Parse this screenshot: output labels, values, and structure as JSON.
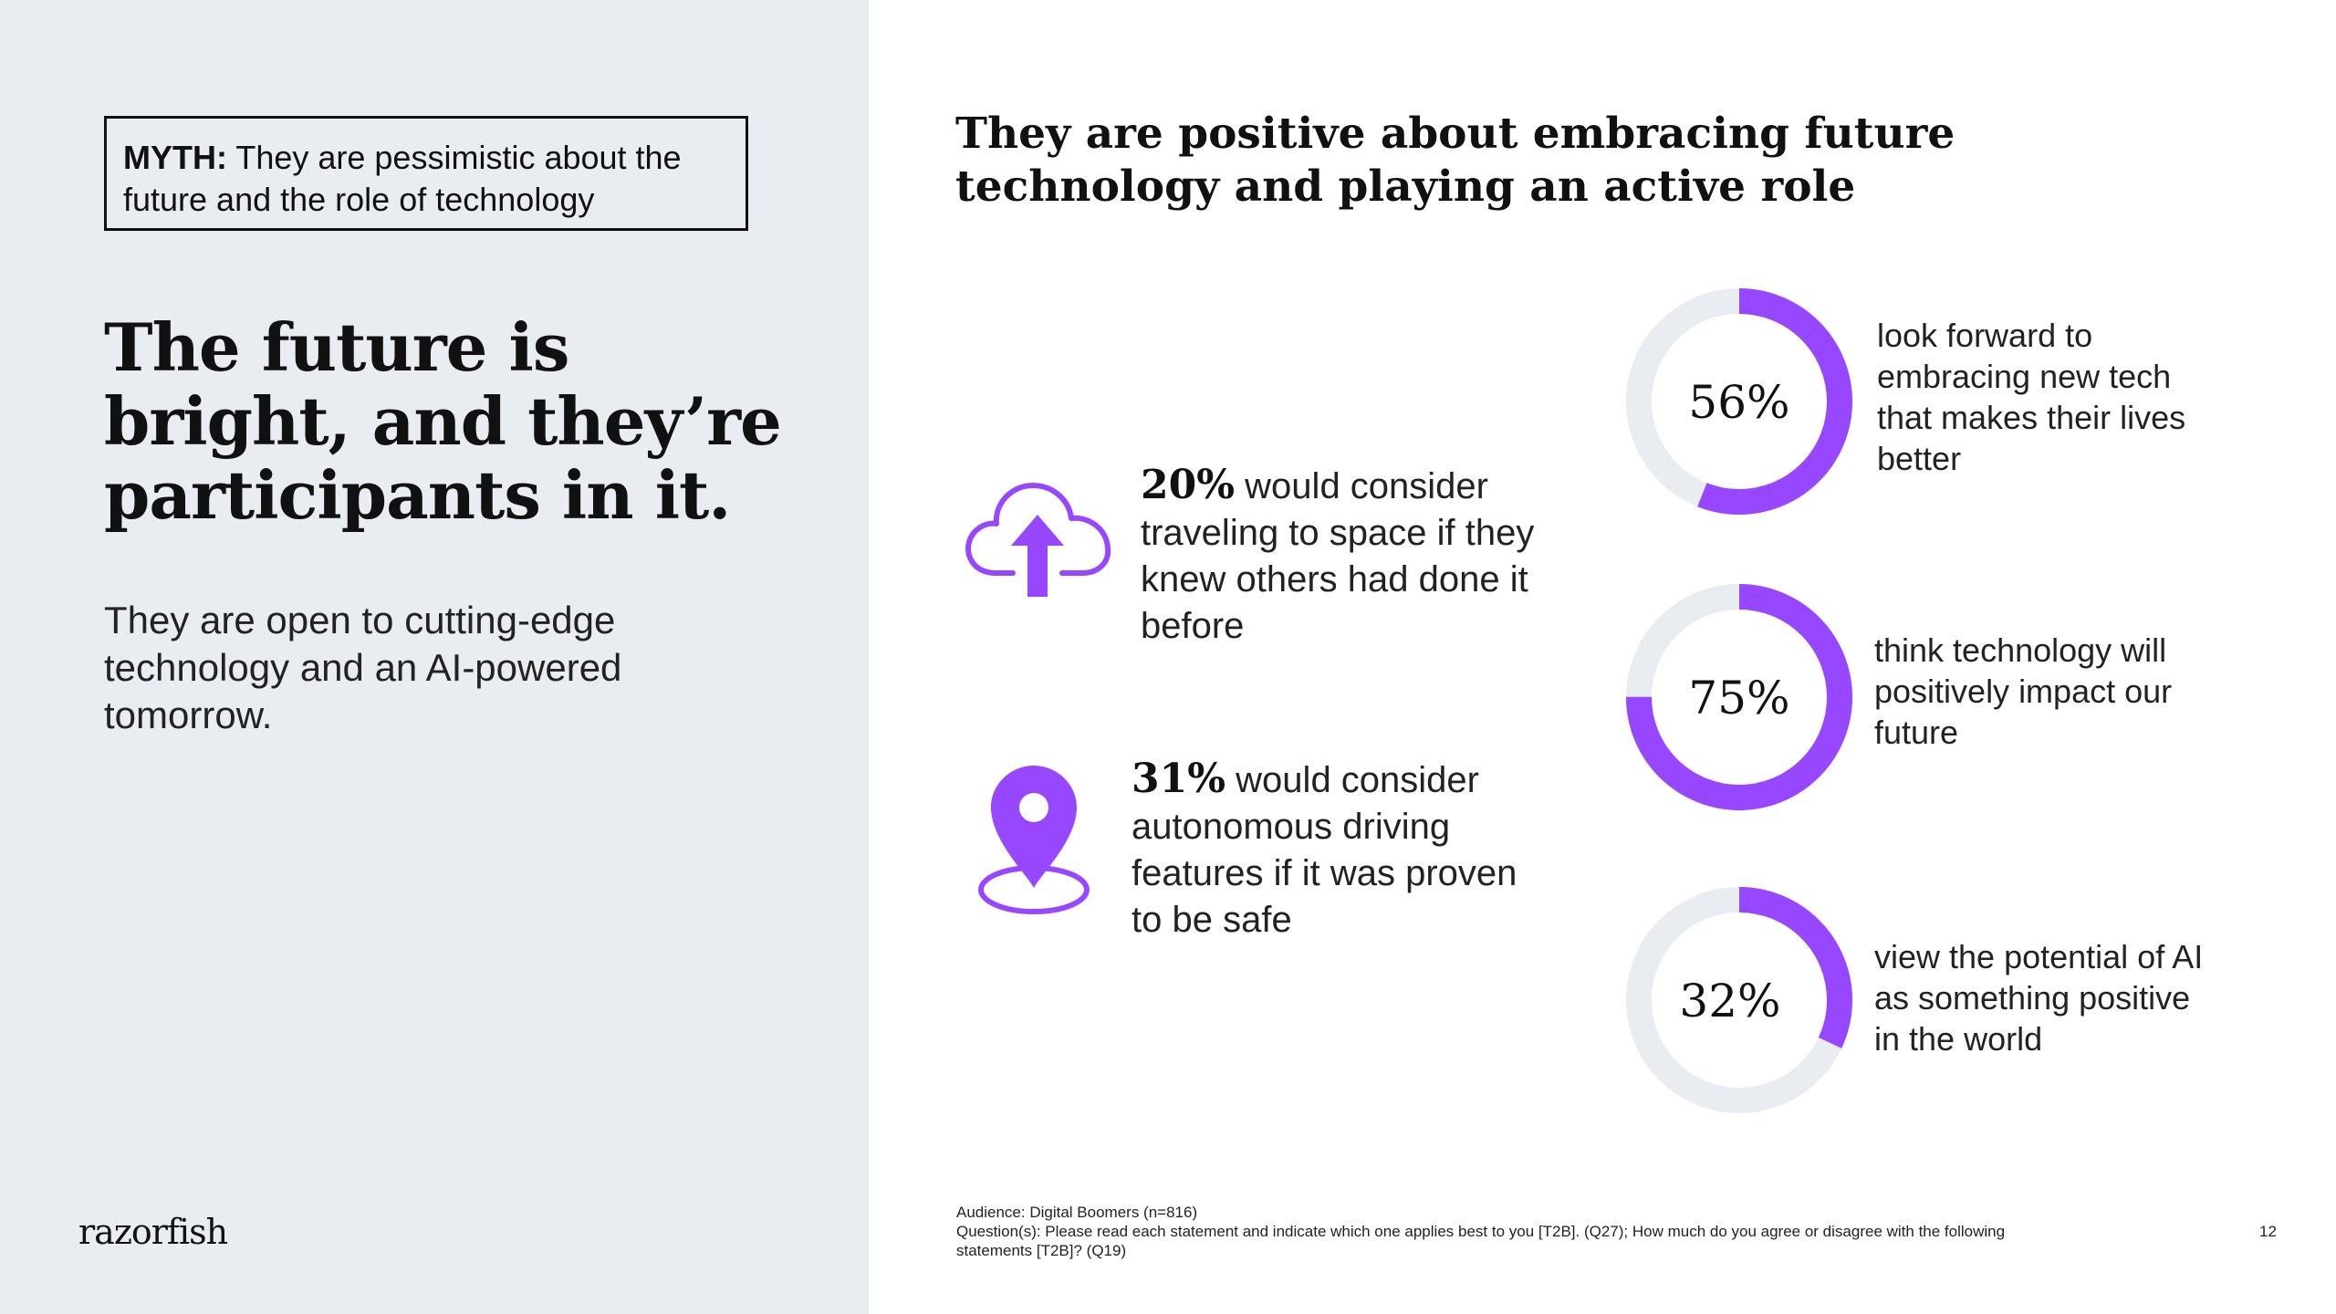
{
  "left": {
    "myth_label": "MYTH:",
    "myth_text": "They are pessimistic about the future and the role of technology",
    "headline": "The future is bright, and they’re participants in it.",
    "subtext": "They are open to cutting-edge technology and an AI-powered tomorrow.",
    "logo": "razorfish"
  },
  "right": {
    "title": "They are positive about embracing future technology and playing an active role",
    "stats": [
      {
        "icon": "cloud-upload-icon",
        "percent": "20%",
        "text": "would consider traveling to space if they knew others had done it before"
      },
      {
        "icon": "location-pin-icon",
        "percent": "31%",
        "text": "would consider autonomous driving features if it was proven to be safe"
      }
    ]
  },
  "chart_data": {
    "type": "pie",
    "title": "",
    "series": [
      {
        "name": "look forward to embracing new tech that makes their lives better",
        "value": 56,
        "label": "56%"
      },
      {
        "name": "think technology will positively impact our future",
        "value": 75,
        "label": "75%"
      },
      {
        "name": "view the potential of AI as something positive in the world",
        "value": 32,
        "label": "32%"
      }
    ],
    "accent_color": "#9747ff",
    "track_color": "#e9edf1"
  },
  "footer": {
    "audience": "Audience: Digital Boomers (n=816)",
    "questions": "Question(s): Please read each statement and indicate which one applies best to you [T2B]. (Q27); How much do you agree or disagree with the following statements [T2B]? (Q19)",
    "page_number": "12"
  }
}
